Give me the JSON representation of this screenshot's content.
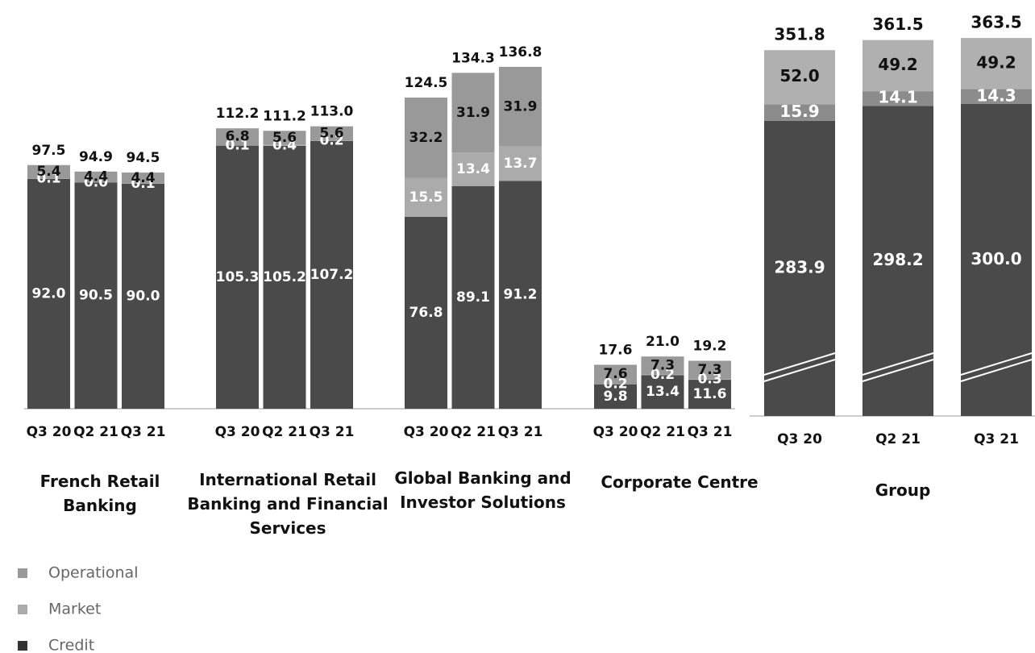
{
  "chart_data": [
    {
      "type": "bar",
      "stacked": true,
      "title": "French Retail Banking",
      "categories": [
        "Q3 20",
        "Q2 21",
        "Q3 21"
      ],
      "ylim": [
        0,
        160
      ],
      "series": [
        {
          "name": "Credit",
          "color": "#4a4a4a",
          "label_color": "#ffffff",
          "values": [
            92.0,
            90.5,
            90.0
          ],
          "value_labels": [
            "92.0",
            "90.5",
            "90.0"
          ]
        },
        {
          "name": "Market",
          "color": "#ababab",
          "label_color": "#ffffff",
          "values": [
            0.1,
            0.0,
            0.1
          ],
          "value_labels": [
            "0.1",
            "0.0",
            "0.1"
          ]
        },
        {
          "name": "Operational",
          "color": "#999999",
          "label_color": "#111111",
          "values": [
            5.4,
            4.4,
            4.4
          ],
          "value_labels": [
            "5.4",
            "4.4",
            "4.4"
          ]
        }
      ],
      "totals": [
        97.5,
        94.9,
        94.5
      ],
      "total_labels": [
        "97.5",
        "94.9",
        "94.5"
      ]
    },
    {
      "type": "bar",
      "stacked": true,
      "title": "International Retail Banking and Financial Services",
      "categories": [
        "Q3 20",
        "Q2 21",
        "Q3 21"
      ],
      "ylim": [
        0,
        160
      ],
      "series": [
        {
          "name": "Credit",
          "color": "#4a4a4a",
          "label_color": "#ffffff",
          "values": [
            105.3,
            105.2,
            107.2
          ],
          "value_labels": [
            "105.3",
            "105.2",
            "107.2"
          ]
        },
        {
          "name": "Market",
          "color": "#ababab",
          "label_color": "#ffffff",
          "values": [
            0.1,
            0.4,
            0.2
          ],
          "value_labels": [
            "0.1",
            "0.4",
            "0.2"
          ]
        },
        {
          "name": "Operational",
          "color": "#999999",
          "label_color": "#111111",
          "values": [
            6.8,
            5.6,
            5.6
          ],
          "value_labels": [
            "6.8",
            "5.6",
            "5.6"
          ]
        }
      ],
      "totals": [
        112.2,
        111.2,
        113.0
      ],
      "total_labels": [
        "112.2",
        "111.2",
        "113.0"
      ]
    },
    {
      "type": "bar",
      "stacked": true,
      "title": "Global Banking and Investor Solutions",
      "categories": [
        "Q3 20",
        "Q2 21",
        "Q3 21"
      ],
      "ylim": [
        0,
        160
      ],
      "series": [
        {
          "name": "Credit",
          "color": "#4a4a4a",
          "label_color": "#ffffff",
          "values": [
            76.8,
            89.1,
            91.2
          ],
          "value_labels": [
            "76.8",
            "89.1",
            "91.2"
          ]
        },
        {
          "name": "Market",
          "color": "#ababab",
          "label_color": "#ffffff",
          "values": [
            15.5,
            13.4,
            13.7
          ],
          "value_labels": [
            "15.5",
            "13.4",
            "13.7"
          ]
        },
        {
          "name": "Operational",
          "color": "#999999",
          "label_color": "#111111",
          "values": [
            32.2,
            31.9,
            31.9
          ],
          "value_labels": [
            "32.2",
            "31.9",
            "31.9"
          ]
        }
      ],
      "totals": [
        124.5,
        134.3,
        136.8
      ],
      "total_labels": [
        "124.5",
        "134.3",
        "136.8"
      ]
    },
    {
      "type": "bar",
      "stacked": true,
      "title": "Corporate Centre",
      "categories": [
        "Q3 20",
        "Q2 21",
        "Q3 21"
      ],
      "ylim": [
        0,
        160
      ],
      "series": [
        {
          "name": "Credit",
          "color": "#4a4a4a",
          "label_color": "#ffffff",
          "values": [
            9.8,
            13.4,
            11.6
          ],
          "value_labels": [
            "9.8",
            "13.4",
            "11.6"
          ]
        },
        {
          "name": "Market",
          "color": "#ababab",
          "label_color": "#ffffff",
          "values": [
            0.2,
            0.2,
            0.3
          ],
          "value_labels": [
            "0.2",
            "0.2",
            "0.3"
          ]
        },
        {
          "name": "Operational",
          "color": "#999999",
          "label_color": "#111111",
          "values": [
            7.6,
            7.3,
            7.3
          ],
          "value_labels": [
            "7.6",
            "7.3",
            "7.3"
          ]
        }
      ],
      "totals": [
        17.6,
        21.0,
        19.2
      ],
      "total_labels": [
        "17.6",
        "21.0",
        "19.2"
      ]
    },
    {
      "type": "bar",
      "stacked": true,
      "title": "Group",
      "categories": [
        "Q3 20",
        "Q2 21",
        "Q3 21"
      ],
      "ylim": [
        0,
        400
      ],
      "series": [
        {
          "name": "Credit",
          "color": "#4a4a4a",
          "label_color": "#ffffff",
          "values": [
            283.9,
            298.2,
            300.0
          ],
          "value_labels": [
            "283.9",
            "298.2",
            "300.0"
          ]
        },
        {
          "name": "Market",
          "color": "#8c8c8c",
          "label_color": "#ffffff",
          "values": [
            15.9,
            14.1,
            14.3
          ],
          "value_labels": [
            "15.9",
            "14.1",
            "14.3"
          ]
        },
        {
          "name": "Operational",
          "color": "#b0b0b0",
          "label_color": "#111111",
          "values": [
            52.0,
            49.2,
            49.2
          ],
          "value_labels": [
            "52.0",
            "49.2",
            "49.2"
          ]
        }
      ],
      "totals": [
        351.8,
        361.5,
        363.5
      ],
      "total_labels": [
        "351.8",
        "361.5",
        "363.5"
      ]
    }
  ]
}
